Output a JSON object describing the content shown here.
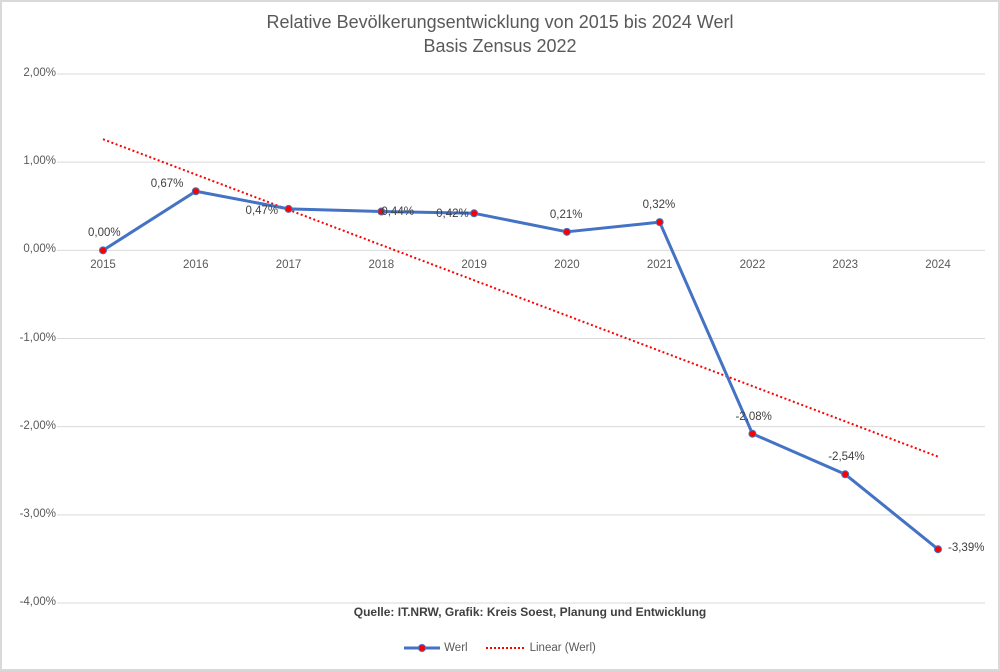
{
  "chart_data": {
    "type": "line",
    "title": "Relative Bevölkerungsentwicklung von 2015 bis 2024 Werl",
    "subtitle": "Basis Zensus 2022",
    "xlabel": "",
    "ylabel": "",
    "categories": [
      "2015",
      "2016",
      "2017",
      "2018",
      "2019",
      "2020",
      "2021",
      "2022",
      "2023",
      "2024"
    ],
    "series": [
      {
        "name": "Werl",
        "values": [
          0.0,
          0.67,
          0.47,
          0.44,
          0.42,
          0.21,
          0.32,
          -2.08,
          -2.54,
          -3.39
        ],
        "labels": [
          "0,00%",
          "0,67%",
          "0,47%",
          "0,44%",
          "0,42%",
          "0,21%",
          "0,32%",
          "-2,08%",
          "-2,54%",
          "-3,39%"
        ],
        "line_color": "#4472c4",
        "marker_color": "#ff0000"
      },
      {
        "name": "Linear (Werl)",
        "type": "trendline",
        "values": [
          1.26,
          0.86,
          0.46,
          0.06,
          -0.34,
          -0.74,
          -1.14,
          -1.54,
          -1.94,
          -2.34
        ],
        "line_color": "#ff0000",
        "dash": "dotted"
      }
    ],
    "yticks": [
      "2,00%",
      "1,00%",
      "0,00%",
      "-1,00%",
      "-2,00%",
      "-3,00%",
      "-4,00%"
    ],
    "ylim": [
      -4,
      2
    ],
    "grid": true,
    "legend_position": "bottom",
    "annotation": "Quelle: IT.NRW, Grafik: Kreis Soest, Planung und Entwicklung"
  },
  "title_line1": "Relative Bevölkerungsentwicklung von 2015 bis 2024 Werl",
  "title_line2": "Basis Zensus 2022",
  "source": "Quelle: IT.NRW, Grafik: Kreis Soest, Planung und Entwicklung",
  "legend": {
    "series": "Werl",
    "trend": "Linear (Werl)"
  }
}
